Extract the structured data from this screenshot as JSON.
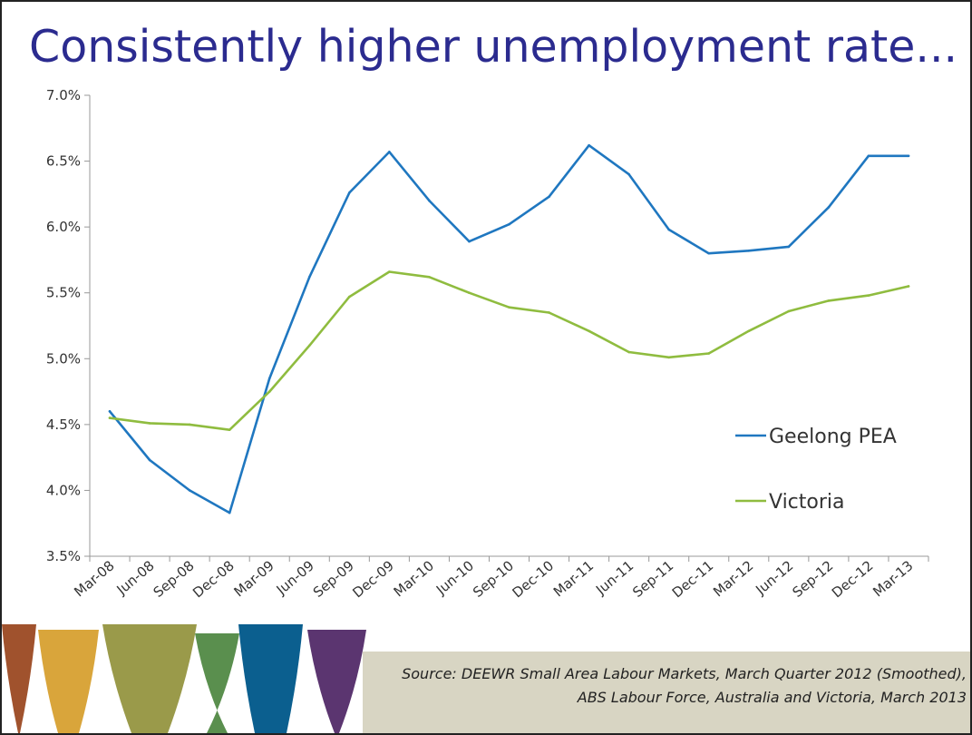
{
  "slide": {
    "title": "Consistently higher unemployment rate...",
    "source_line1": "Source: DEEWR Small Area Labour Markets, March Quarter 2012 (Smoothed),",
    "source_line2": "ABS Labour Force, Australia and Victoria, March 2013"
  },
  "colors": {
    "title": "#2b2b8f",
    "geelong": "#1f77c0",
    "victoria": "#8fbc3f",
    "source_box": "#d8d5c3",
    "deco": [
      "#a0522d",
      "#d9a53b",
      "#9a9a4a",
      "#5a8f4e",
      "#0b5f8f",
      "#5b3570"
    ]
  },
  "chart_data": {
    "type": "line",
    "categories": [
      "Mar-08",
      "Jun-08",
      "Sep-08",
      "Dec-08",
      "Mar-09",
      "Jun-09",
      "Sep-09",
      "Dec-09",
      "Mar-10",
      "Jun-10",
      "Sep-10",
      "Dec-10",
      "Mar-11",
      "Jun-11",
      "Sep-11",
      "Dec-11",
      "Mar-12",
      "Jun-12",
      "Sep-12",
      "Dec-12",
      "Mar-13"
    ],
    "ylim": [
      3.5,
      7.0
    ],
    "yticks": [
      "3.5%",
      "4.0%",
      "4.5%",
      "5.0%",
      "5.5%",
      "6.0%",
      "6.5%",
      "7.0%"
    ],
    "ytick_values": [
      3.5,
      4.0,
      4.5,
      5.0,
      5.5,
      6.0,
      6.5,
      7.0
    ],
    "grid": false,
    "legend_position": "right",
    "series": [
      {
        "name": "Geelong PEA",
        "color": "#1f77c0",
        "values": [
          4.6,
          4.23,
          4.0,
          3.83,
          4.85,
          5.62,
          6.26,
          6.57,
          6.2,
          5.89,
          6.02,
          6.23,
          6.62,
          6.4,
          5.98,
          5.8,
          5.82,
          5.85,
          6.15,
          6.54,
          6.54
        ]
      },
      {
        "name": "Victoria",
        "color": "#8fbc3f",
        "values": [
          4.55,
          4.51,
          4.5,
          4.46,
          4.75,
          5.1,
          5.47,
          5.66,
          5.62,
          5.5,
          5.39,
          5.35,
          5.21,
          5.05,
          5.01,
          5.04,
          5.21,
          5.36,
          5.44,
          5.48,
          5.55
        ]
      }
    ]
  }
}
